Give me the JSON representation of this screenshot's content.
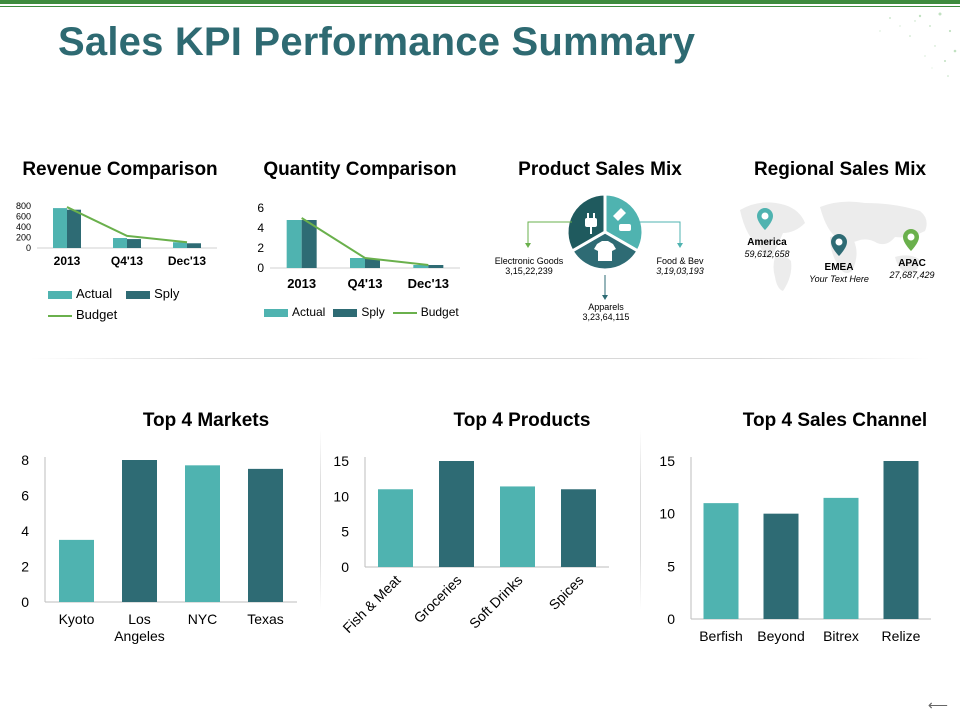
{
  "title": "Sales KPI Performance Summary",
  "colors": {
    "teal": "#4fb3b0",
    "dark": "#2e6b74",
    "green": "#6ab04c",
    "title": "#2e6a72"
  },
  "chart_data": [
    {
      "id": "revenue",
      "type": "bar",
      "title": "Revenue Comparison",
      "categories": [
        "2013",
        "Q4'13",
        "Dec'13"
      ],
      "series": [
        {
          "name": "Actual",
          "values": [
            760,
            190,
            110
          ],
          "kind": "bar"
        },
        {
          "name": "Sply",
          "values": [
            730,
            170,
            90
          ],
          "kind": "bar"
        },
        {
          "name": "Budget",
          "values": [
            780,
            230,
            110
          ],
          "kind": "line"
        }
      ],
      "yticks": [
        "0",
        "200",
        "400",
        "600",
        "800"
      ],
      "ylim": [
        0,
        800
      ],
      "legend": [
        "Actual",
        "Sply",
        "Budget"
      ]
    },
    {
      "id": "quantity",
      "type": "bar",
      "title": "Quantity Comparison",
      "categories": [
        "2013",
        "Q4'13",
        "Dec'13"
      ],
      "series": [
        {
          "name": "Actual",
          "values": [
            4.8,
            1.0,
            0.3
          ],
          "kind": "bar"
        },
        {
          "name": "Sply",
          "values": [
            4.8,
            0.9,
            0.3
          ],
          "kind": "bar"
        },
        {
          "name": "Budget",
          "values": [
            5.0,
            1.0,
            0.3
          ],
          "kind": "line"
        }
      ],
      "yticks": [
        "0",
        "2",
        "4",
        "6"
      ],
      "ylim": [
        0,
        6
      ],
      "legend": [
        "Actual",
        "Sply",
        "Budget"
      ]
    },
    {
      "id": "markets",
      "type": "bar",
      "title": "Top 4 Markets",
      "categories": [
        "Kyoto",
        "Los Angeles",
        "NYC",
        "Texas"
      ],
      "category_lines": [
        [
          "Kyoto"
        ],
        [
          "Los",
          "Angeles"
        ],
        [
          "NYC"
        ],
        [
          "Texas"
        ]
      ],
      "values": [
        3.5,
        8,
        7.7,
        7.5
      ],
      "yticks": [
        "0",
        "2",
        "4",
        "6",
        "8"
      ],
      "ylim": [
        0,
        8
      ]
    },
    {
      "id": "products",
      "type": "bar",
      "title": "Top 4 Products",
      "categories": [
        "Fish & Meat",
        "Groceries",
        "Soft Drinks",
        "Spices"
      ],
      "values": [
        11,
        15,
        11.4,
        11
      ],
      "yticks": [
        "0",
        "5",
        "10",
        "15"
      ],
      "ylim": [
        0,
        15
      ]
    },
    {
      "id": "channels",
      "type": "bar",
      "title": "Top 4 Sales Channel",
      "categories": [
        "Berfish",
        "Beyond",
        "Bitrex",
        "Relize"
      ],
      "values": [
        11,
        10,
        11.5,
        15
      ],
      "yticks": [
        "0",
        "5",
        "10",
        "15"
      ],
      "ylim": [
        0,
        15
      ]
    }
  ],
  "product_mix": {
    "title": "Product Sales Mix",
    "segments": [
      {
        "name": "Electronic Goods",
        "value": "3,15,22,239",
        "icon": "plug-icon"
      },
      {
        "name": "Food & Bev",
        "value": "3,19,03,193",
        "icon": "food-icon"
      },
      {
        "name": "Apparels",
        "value": "3,23,64,115",
        "icon": "shirt-icon"
      }
    ]
  },
  "regional_mix": {
    "title": "Regional Sales Mix",
    "regions": [
      {
        "name": "America",
        "value": "59,612,658"
      },
      {
        "name": "EMEA",
        "value": "Your Text Here"
      },
      {
        "name": "APAC",
        "value": "27,687,429"
      }
    ]
  },
  "nav_label": "⟵"
}
